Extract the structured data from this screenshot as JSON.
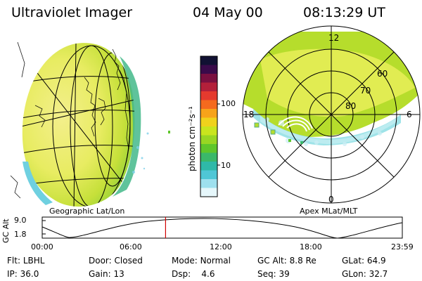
{
  "header": {
    "instrument": "Ultraviolet Imager",
    "date": "04 May 00",
    "time": "08:13:29 UT"
  },
  "colorbar": {
    "unit_label": "photon cm⁻²s⁻¹",
    "ticks": [
      "100",
      "10"
    ],
    "colors": [
      "#111133",
      "#3a0a4a",
      "#7a1040",
      "#b3203a",
      "#e53a2e",
      "#f56a1e",
      "#f7a31a",
      "#f0d21c",
      "#c9e51e",
      "#98d623",
      "#5fc62b",
      "#3ab86a",
      "#2fb9a8",
      "#4fc6d6",
      "#9ee0ee",
      "#e6f7fb"
    ]
  },
  "geo_panel": {
    "label": "Geographic Lat/Lon"
  },
  "polar_panel": {
    "label": "Apex MLat/MLT",
    "mlt_labels": {
      "top": "12",
      "left": "18",
      "right": "6",
      "bottom": "0"
    },
    "lat_labels": [
      "60",
      "70",
      "80"
    ]
  },
  "altitude_plot": {
    "ylabel": "GC Alt",
    "y_ticks": [
      "9.0",
      "1.8"
    ],
    "x_ticks": [
      "00:00",
      "06:00",
      "12:00",
      "18:00",
      "23:59"
    ],
    "current_time_fraction": 0.3426
  },
  "footer": {
    "row1": [
      {
        "label": "Flt:",
        "value": "LBHL"
      },
      {
        "label": "Door:",
        "value": "Closed"
      },
      {
        "label": "Mode:",
        "value": "Normal"
      },
      {
        "label": "GC Alt:",
        "value": "8.8 Re"
      },
      {
        "label": "GLat:",
        "value": "64.9"
      }
    ],
    "row2": [
      {
        "label": "IP:",
        "value": "36.0"
      },
      {
        "label": "Gain:",
        "value": "13"
      },
      {
        "label": "Dsp:",
        "value": "4.6"
      },
      {
        "label": "Seq:",
        "value": "39"
      },
      {
        "label": "GLon:",
        "value": "32.7"
      }
    ]
  }
}
